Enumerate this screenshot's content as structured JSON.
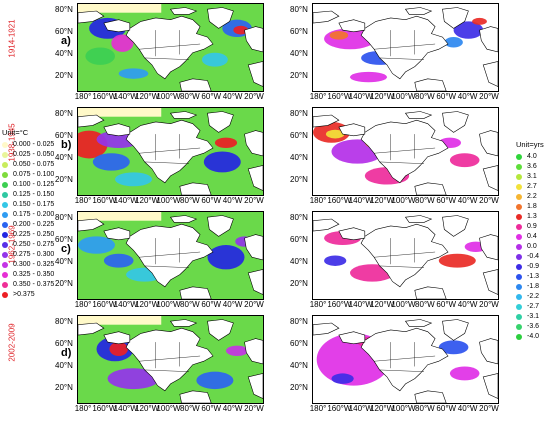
{
  "rows": [
    {
      "letter": "a)",
      "period": "1914-1921"
    },
    {
      "letter": "b)",
      "period": "1938-1945"
    },
    {
      "letter": "c)",
      "period": "1962-1969"
    },
    {
      "letter": "d)",
      "period": "2002-2009"
    }
  ],
  "axes": {
    "lat_ticks": [
      "80°N",
      "60°N",
      "40°N",
      "20°N"
    ],
    "lon_ticks": [
      "180°",
      "160°W",
      "140°W",
      "120°W",
      "100°W",
      "80°W",
      "60°W",
      "40°W",
      "20°W"
    ]
  },
  "legend_left": {
    "title": "Unit=°C",
    "entries": [
      {
        "label": "0.000 - 0.025",
        "color": "#fff9c8"
      },
      {
        "label": "0.025 - 0.050",
        "color": "#e9f59a"
      },
      {
        "label": "0.050 - 0.075",
        "color": "#c9ec5d"
      },
      {
        "label": "0.075 - 0.100",
        "color": "#7fdb3c"
      },
      {
        "label": "0.100 - 0.125",
        "color": "#3dcf52"
      },
      {
        "label": "0.125 - 0.150",
        "color": "#2fc8a2"
      },
      {
        "label": "0.150 - 0.175",
        "color": "#34c7e6"
      },
      {
        "label": "0.175 - 0.200",
        "color": "#2f9cf2"
      },
      {
        "label": "0.200 - 0.225",
        "color": "#2c64f0"
      },
      {
        "label": "0.225 - 0.250",
        "color": "#2426e2"
      },
      {
        "label": "0.250 - 0.275",
        "color": "#5b2fe8"
      },
      {
        "label": "0.275 - 0.300",
        "color": "#9434ea"
      },
      {
        "label": "0.300 - 0.325",
        "color": "#c534e6"
      },
      {
        "label": "0.325 - 0.350",
        "color": "#e62fd4"
      },
      {
        "label": "0.350 - 0.375",
        "color": "#ef2f96"
      },
      {
        "label": ">0.375",
        "color": "#ec1f24"
      }
    ]
  },
  "legend_right": {
    "title": "Unit=yrs",
    "entries": [
      {
        "label": "4.0",
        "color": "#2fd53a"
      },
      {
        "label": "3.6",
        "color": "#5ede3a"
      },
      {
        "label": "3.1",
        "color": "#b5e83c"
      },
      {
        "label": "2.7",
        "color": "#f2e23a"
      },
      {
        "label": "2.2",
        "color": "#f6b532"
      },
      {
        "label": "1.8",
        "color": "#f2742c"
      },
      {
        "label": "1.3",
        "color": "#e92b26"
      },
      {
        "label": "0.9",
        "color": "#ee2b9b"
      },
      {
        "label": "0.4",
        "color": "#e02fe6"
      },
      {
        "label": "0.0",
        "color": "#b42fe8"
      },
      {
        "label": "-0.4",
        "color": "#7e30e8"
      },
      {
        "label": "-0.9",
        "color": "#3d2ce6"
      },
      {
        "label": "-1.3",
        "color": "#2c52ee"
      },
      {
        "label": "-1.8",
        "color": "#2c88f0"
      },
      {
        "label": "-2.2",
        "color": "#32b8ee"
      },
      {
        "label": "-2.7",
        "color": "#33cfd8"
      },
      {
        "label": "-3.1",
        "color": "#2fd0a4"
      },
      {
        "label": "-3.6",
        "color": "#37d36c"
      },
      {
        "label": "-4.0",
        "color": "#2ccf3e"
      }
    ]
  }
}
